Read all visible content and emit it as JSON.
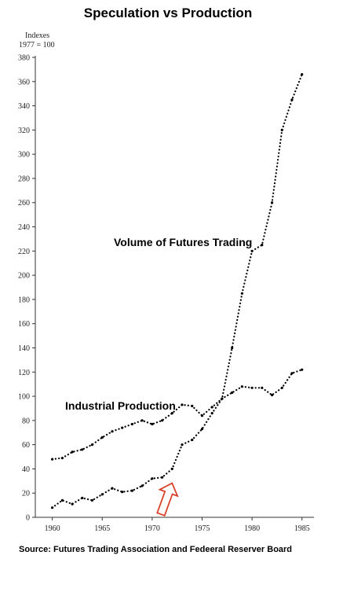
{
  "chart_data": {
    "type": "line",
    "title": "Speculation vs Production",
    "ylabel": [
      "Indexes",
      "1977 = 100"
    ],
    "xlabel": "",
    "source": "Source: Futures Trading Association and Fedeeral Reserver Board",
    "xlim": [
      1958.3,
      1986.2
    ],
    "ylim": [
      0,
      380
    ],
    "xticks": [
      1960,
      1965,
      1970,
      1975,
      1980,
      1985
    ],
    "yticks": [
      0,
      20,
      40,
      60,
      80,
      100,
      120,
      140,
      160,
      180,
      200,
      220,
      240,
      260,
      280,
      300,
      320,
      340,
      360,
      380
    ],
    "grid": false,
    "legend": "none",
    "series": [
      {
        "name": "Volume of Futures Trading",
        "color": "#000000",
        "style": "dotted",
        "x": [
          1960,
          1961,
          1962,
          1963,
          1964,
          1965,
          1966,
          1967,
          1968,
          1969,
          1970,
          1971,
          1972,
          1973,
          1974,
          1975,
          1976,
          1977,
          1978,
          1979,
          1980,
          1981,
          1982,
          1983,
          1984,
          1985
        ],
        "values": [
          8,
          14,
          11,
          16,
          14,
          19,
          24,
          21,
          22,
          26,
          32,
          33,
          40,
          60,
          64,
          73,
          86,
          98,
          140,
          185,
          220,
          225,
          260,
          320,
          345,
          366
        ]
      },
      {
        "name": "Industrial Production",
        "color": "#000000",
        "style": "dotted",
        "x": [
          1960,
          1961,
          1962,
          1963,
          1964,
          1965,
          1966,
          1967,
          1968,
          1969,
          1970,
          1971,
          1972,
          1973,
          1974,
          1975,
          1976,
          1977,
          1978,
          1979,
          1980,
          1981,
          1982,
          1983,
          1984,
          1985
        ],
        "values": [
          48,
          49,
          54,
          56,
          60,
          66,
          71,
          74,
          77,
          80,
          77,
          80,
          86,
          93,
          92,
          84,
          91,
          98,
          103,
          108,
          107,
          107,
          101,
          107,
          119,
          122
        ]
      }
    ],
    "annotations": [
      {
        "type": "arrow",
        "color": "#d9432b",
        "pointing_to": {
          "x": 1972,
          "y": 36
        }
      }
    ]
  }
}
